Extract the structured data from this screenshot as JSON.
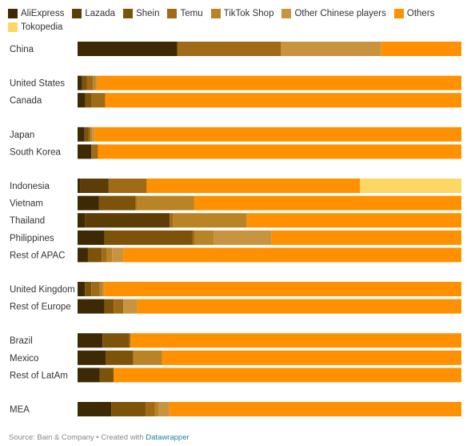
{
  "colors": {
    "AliExpress": "#3d2a05",
    "Lazada": "#5c3d08",
    "Shein": "#7d530a",
    "Temu": "#9f6b17",
    "TikTok Shop": "#b98426",
    "Other Chinese players": "#c99440",
    "Others": "#ff9100",
    "Tokopedia": "#fdd764"
  },
  "chart_data": {
    "type": "bar",
    "orientation": "horizontal",
    "stacked": true,
    "normalized_to": 100,
    "legend_placement": "top",
    "series_order": [
      "AliExpress",
      "Lazada",
      "Shein",
      "Temu",
      "TikTok Shop",
      "Other Chinese players",
      "Others",
      "Tokopedia"
    ],
    "categories": [
      "China",
      "United States",
      "Canada",
      "Japan",
      "South Korea",
      "Indonesia",
      "Vietnam",
      "Thailand",
      "Philippines",
      "Rest of APAC",
      "United Kingdom",
      "Rest of Europe",
      "Brazil",
      "Mexico",
      "Rest of LatAm",
      "MEA"
    ],
    "groups": [
      [
        0
      ],
      [
        1,
        2
      ],
      [
        3,
        4
      ],
      [
        5,
        6,
        7,
        8,
        9
      ],
      [
        10,
        11
      ],
      [
        12,
        13,
        14
      ],
      [
        15
      ]
    ],
    "series": [
      {
        "name": "AliExpress",
        "values": [
          26,
          1.2,
          2,
          1.8,
          3.6,
          0.8,
          5.6,
          1.9,
          7,
          2.7,
          1.9,
          7,
          6.5,
          7.3,
          5.8,
          8.8
        ]
      },
      {
        "name": "Lazada",
        "values": [
          0,
          0,
          0,
          0,
          0,
          7.3,
          0,
          22.1,
          0,
          0,
          0,
          0,
          0,
          0,
          0,
          0
        ]
      },
      {
        "name": "Shein",
        "values": [
          0,
          1.2,
          1.7,
          1.1,
          0,
          0,
          9.4,
          0,
          22.9,
          3.6,
          1.7,
          2.4,
          7,
          7.2,
          3.6,
          8.9
        ]
      },
      {
        "name": "Temu",
        "values": [
          27,
          1.6,
          3.5,
          0.5,
          1.7,
          9.9,
          0.4,
          0.8,
          0.6,
          1.2,
          2.2,
          2.5,
          0.3,
          0,
          0,
          2.4
        ]
      },
      {
        "name": "TikTok Shop",
        "values": [
          0,
          0.7,
          0,
          0.4,
          0,
          0,
          15,
          19.3,
          5,
          1.5,
          0.8,
          0,
          0,
          7.5,
          0,
          1.1
        ]
      },
      {
        "name": "Other Chinese players",
        "values": [
          26,
          0.4,
          0,
          0.6,
          0,
          0,
          0,
          0,
          15,
          2.9,
          0.4,
          3.7,
          0,
          0,
          0,
          2.7
        ]
      },
      {
        "name": "Others",
        "values": [
          21,
          94.9,
          92.8,
          95.6,
          94.7,
          55.6,
          69.6,
          55.9,
          49.5,
          88.1,
          93,
          84.4,
          86.2,
          78,
          90.6,
          76.1
        ]
      },
      {
        "name": "Tokopedia",
        "values": [
          0,
          0,
          0,
          0,
          0,
          26.4,
          0,
          0,
          0,
          0,
          0,
          0,
          0,
          0,
          0,
          0
        ]
      }
    ]
  },
  "source": {
    "prefix": "Source: Bain & Company • Created with ",
    "link": "Datawrapper"
  }
}
